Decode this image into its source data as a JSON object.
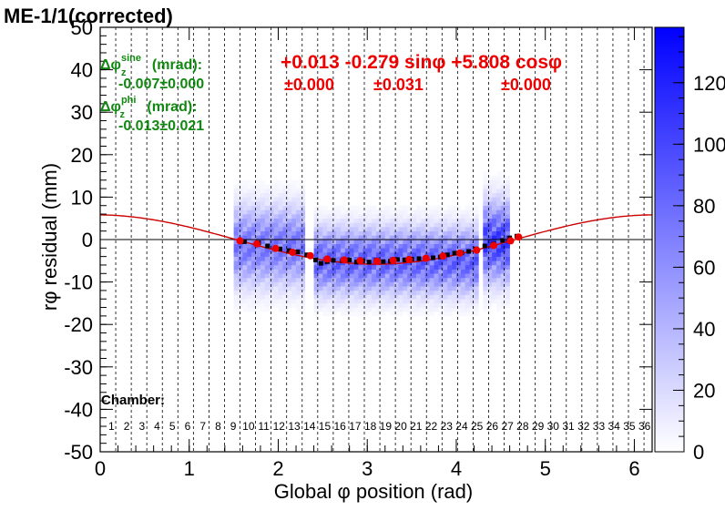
{
  "title": "ME-1/1(corrected)",
  "chart_data": {
    "type": "heatmap",
    "xlabel": "Global φ position (rad)",
    "ylabel": "rφ residual (mm)",
    "xlim": [
      0,
      6.2
    ],
    "ylim": [
      -50,
      50
    ],
    "x_ticks": [
      "0",
      "1",
      "2",
      "3",
      "4",
      "5",
      "6"
    ],
    "y_ticks": [
      "-50",
      "-40",
      "-30",
      "-20",
      "-10",
      "0",
      "10",
      "20",
      "30",
      "40",
      "50"
    ],
    "y_tick_values": [
      -50,
      -40,
      -30,
      -20,
      -10,
      0,
      10,
      20,
      30,
      40,
      50
    ],
    "palette_ticks": [
      "0",
      "20",
      "40",
      "60",
      "80",
      "100",
      "120"
    ],
    "palette_values": [
      0,
      20,
      40,
      60,
      80,
      100,
      120
    ],
    "palette_max": 138,
    "grid": "vertical dashed lines at chamber boundaries",
    "annotations": {
      "sine_label_main": "Δφ",
      "sine_label_sup": "sine",
      "sine_label_sub": "z",
      "sine_label_rest": " (mrad):",
      "sine_value": "-0.007±0.000",
      "phi_label_main": "Δφ",
      "phi_label_sup": "phi",
      "phi_label_sub": "z",
      "phi_label_rest": " (mrad):",
      "phi_value": "-0.013±0.021",
      "fit_formula": "+0.013 -0.279 sinφ +5.808 cosφ",
      "fit_err_1": "±0.000",
      "fit_err_2": "±0.031",
      "fit_err_3": "±0.000"
    },
    "chamber_label": "Chamber:",
    "chamber_numbers": [
      "1",
      "2",
      "3",
      "4",
      "5",
      "6",
      "7",
      "8",
      "9",
      "10",
      "11",
      "12",
      "13",
      "14",
      "15",
      "16",
      "17",
      "18",
      "19",
      "20",
      "21",
      "22",
      "23",
      "24",
      "25",
      "26",
      "27",
      "28",
      "29",
      "30",
      "31",
      "32",
      "33",
      "34",
      "35",
      "36"
    ],
    "fit_curve": {
      "p0": 0.013,
      "p1": -0.279,
      "p2": 5.808,
      "color": "#cc0000"
    },
    "black_points": [
      {
        "x": 1.62,
        "y": -0.5
      },
      {
        "x": 1.78,
        "y": -0.8
      },
      {
        "x": 1.88,
        "y": -1.5
      },
      {
        "x": 2.02,
        "y": -2.2
      },
      {
        "x": 2.12,
        "y": -2.6
      },
      {
        "x": 2.22,
        "y": -2.9
      },
      {
        "x": 2.32,
        "y": -3.6
      },
      {
        "x": 2.42,
        "y": -4.8
      },
      {
        "x": 2.48,
        "y": -5.6
      },
      {
        "x": 2.55,
        "y": -5.2
      },
      {
        "x": 2.62,
        "y": -4.9
      },
      {
        "x": 2.72,
        "y": -5.0
      },
      {
        "x": 2.8,
        "y": -4.8
      },
      {
        "x": 2.88,
        "y": -5.3
      },
      {
        "x": 2.95,
        "y": -5.0
      },
      {
        "x": 3.02,
        "y": -5.3
      },
      {
        "x": 3.1,
        "y": -4.9
      },
      {
        "x": 3.18,
        "y": -5.2
      },
      {
        "x": 3.26,
        "y": -5.1
      },
      {
        "x": 3.34,
        "y": -4.7
      },
      {
        "x": 3.42,
        "y": -4.8
      },
      {
        "x": 3.5,
        "y": -4.6
      },
      {
        "x": 3.58,
        "y": -4.5
      },
      {
        "x": 3.66,
        "y": -4.4
      },
      {
        "x": 3.74,
        "y": -4.3
      },
      {
        "x": 3.82,
        "y": -4.1
      },
      {
        "x": 3.9,
        "y": -3.6
      },
      {
        "x": 3.98,
        "y": -3.2
      },
      {
        "x": 4.06,
        "y": -3.1
      },
      {
        "x": 4.14,
        "y": -2.8
      },
      {
        "x": 4.22,
        "y": -2.2
      },
      {
        "x": 4.32,
        "y": -1.5
      },
      {
        "x": 4.42,
        "y": -1.0
      },
      {
        "x": 4.52,
        "y": -0.2
      },
      {
        "x": 4.6,
        "y": 0.4
      },
      {
        "x": 4.68,
        "y": 0.8
      }
    ],
    "red_points": [
      {
        "x": 1.57,
        "y": -0.3
      },
      {
        "x": 1.76,
        "y": -1.0
      },
      {
        "x": 1.97,
        "y": -2.1
      },
      {
        "x": 2.16,
        "y": -3.0
      },
      {
        "x": 2.36,
        "y": -3.8
      },
      {
        "x": 2.55,
        "y": -4.6
      },
      {
        "x": 2.74,
        "y": -4.8
      },
      {
        "x": 2.92,
        "y": -5.0
      },
      {
        "x": 3.11,
        "y": -5.1
      },
      {
        "x": 3.29,
        "y": -4.9
      },
      {
        "x": 3.47,
        "y": -4.7
      },
      {
        "x": 3.66,
        "y": -4.4
      },
      {
        "x": 3.85,
        "y": -3.9
      },
      {
        "x": 4.04,
        "y": -3.2
      },
      {
        "x": 4.23,
        "y": -2.5
      },
      {
        "x": 4.42,
        "y": -1.4
      },
      {
        "x": 4.61,
        "y": -0.3
      },
      {
        "x": 4.7,
        "y": 0.6
      }
    ],
    "heatmap_blobs": [
      {
        "x0": 1.5,
        "x1": 2.3,
        "y": -1.5,
        "spread": 6,
        "peak": 85
      },
      {
        "x0": 2.4,
        "x1": 4.25,
        "y": -5,
        "spread": 5,
        "peak": 100
      },
      {
        "x0": 4.28,
        "x1": 4.62,
        "y": -0.5,
        "spread": 6,
        "peak": 120
      }
    ]
  }
}
